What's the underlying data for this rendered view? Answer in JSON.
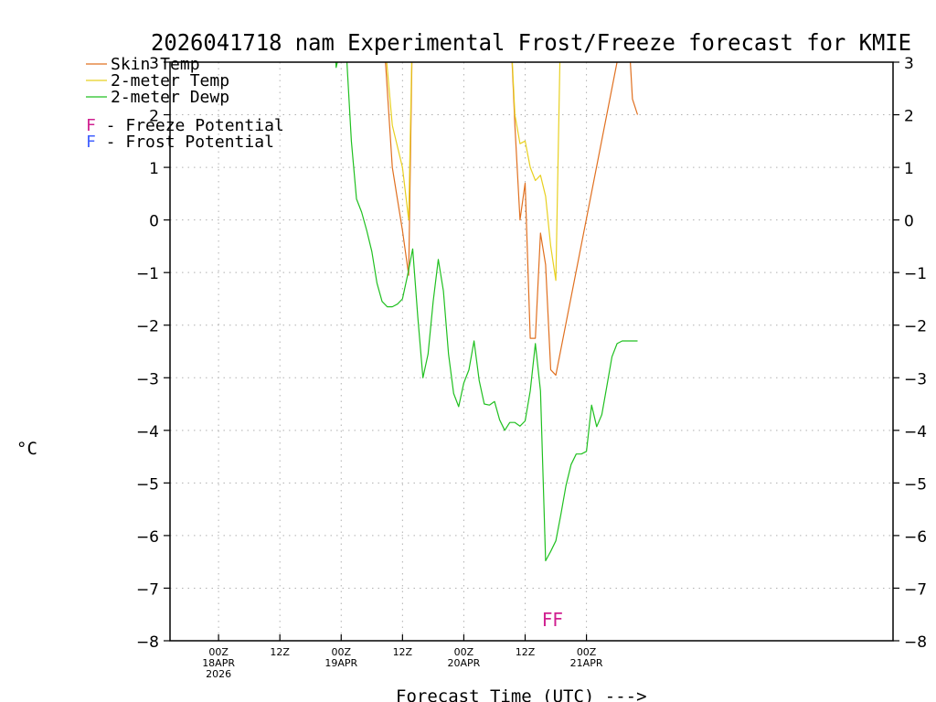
{
  "chart_data": {
    "type": "line",
    "title": "2026041718 nam Experimental Frost/Freeze forecast for KMIE",
    "xlabel": "Forecast Time (UTC) --->",
    "ylabel": "°C",
    "ylim": [
      -8,
      3
    ],
    "x_unit": "hours from 2026-04-18 00Z",
    "xlim": [
      -9.5,
      132
    ],
    "grid": true,
    "y_ticks": [
      3,
      2,
      1,
      0,
      -1,
      -2,
      -3,
      -4,
      -5,
      -6,
      -7,
      -8
    ],
    "y_tick_labels": [
      "3",
      "2",
      "1",
      "0",
      "−1",
      "−2",
      "−3",
      "−4",
      "−5",
      "−6",
      "−7",
      "−8"
    ],
    "time_ticks": [
      {
        "hour": 0,
        "lines": [
          "00Z",
          "18APR",
          "2026"
        ]
      },
      {
        "hour": 12,
        "lines": [
          "12Z"
        ]
      },
      {
        "hour": 24,
        "lines": [
          "00Z",
          "19APR"
        ]
      },
      {
        "hour": 36,
        "lines": [
          "12Z"
        ]
      },
      {
        "hour": 48,
        "lines": [
          "00Z",
          "20APR"
        ]
      },
      {
        "hour": 60,
        "lines": [
          "12Z"
        ]
      },
      {
        "hour": 72,
        "lines": [
          "00Z",
          "21APR"
        ]
      }
    ],
    "series": [
      {
        "name": "Skin Temp",
        "color": "#e07020",
        "x": [
          32,
          34,
          36,
          37.2,
          38,
          57,
          58,
          59,
          60,
          61,
          62,
          63,
          64,
          65,
          66,
          80,
          81,
          82
        ],
        "y": [
          4,
          1.0,
          -0.2,
          -1.05,
          4,
          4,
          1.8,
          0.0,
          0.7,
          -2.25,
          -2.25,
          -0.25,
          -0.85,
          -2.85,
          -2.95,
          4,
          2.3,
          2.0
        ]
      },
      {
        "name": "2-meter Temp",
        "color": "#e8d020",
        "x": [
          32,
          34,
          36,
          37.2,
          38,
          57,
          58,
          59,
          60,
          61,
          62,
          63,
          64,
          65,
          66,
          67
        ],
        "y": [
          4,
          1.8,
          1.0,
          0.0,
          4,
          4,
          2.0,
          1.45,
          1.5,
          1.0,
          0.75,
          0.85,
          0.45,
          -0.5,
          -1.15,
          4
        ]
      },
      {
        "name": "2-meter Dewp",
        "color": "#20c020",
        "x": [
          22.5,
          23,
          23.5,
          24.5,
          25,
          26,
          27,
          28,
          29,
          30,
          31,
          32,
          33,
          34,
          35,
          36,
          37,
          38,
          39,
          40,
          41,
          42,
          43,
          44,
          45,
          46,
          47,
          48,
          49,
          50,
          51,
          52,
          53,
          54,
          55,
          56,
          57,
          58,
          59,
          60,
          61,
          62,
          63,
          64,
          65,
          66,
          67,
          68,
          69,
          70,
          71,
          72,
          73,
          74,
          75,
          76,
          77,
          78,
          79,
          80,
          81,
          82
        ],
        "y": [
          4,
          2.9,
          3.1,
          4,
          3.2,
          1.5,
          0.4,
          0.15,
          -0.2,
          -0.6,
          -1.2,
          -1.55,
          -1.65,
          -1.65,
          -1.6,
          -1.5,
          -1.05,
          -0.55,
          -1.85,
          -3.0,
          -2.55,
          -1.55,
          -0.75,
          -1.35,
          -2.55,
          -3.3,
          -3.55,
          -3.1,
          -2.85,
          -2.3,
          -3.05,
          -3.5,
          -3.52,
          -3.45,
          -3.8,
          -4.0,
          -3.85,
          -3.85,
          -3.92,
          -3.82,
          -3.25,
          -2.35,
          -3.25,
          -6.48,
          -6.3,
          -6.1,
          -5.6,
          -5.05,
          -4.65,
          -4.45,
          -4.45,
          -4.4,
          -3.52,
          -3.93,
          -3.7,
          -3.15,
          -2.6,
          -2.35,
          -2.3,
          -2.3,
          -2.3,
          -2.3
        ]
      }
    ],
    "legend": {
      "placement": "top-left",
      "entries": [
        {
          "label": "Skin Temp",
          "color": "#e07020"
        },
        {
          "label": "2-meter Temp",
          "color": "#e8d020"
        },
        {
          "label": "2-meter Dewp",
          "color": "#20c020"
        }
      ],
      "potential_entries": [
        {
          "marker": "F",
          "label": " - Freeze Potential",
          "color": "#d02090"
        },
        {
          "marker": "F",
          "label": " - Frost Potential",
          "color": "#4060ff"
        }
      ]
    },
    "annotations": [
      {
        "text": "FF",
        "hour": 63.3,
        "value": -7.6,
        "color": "#d02090"
      }
    ]
  }
}
